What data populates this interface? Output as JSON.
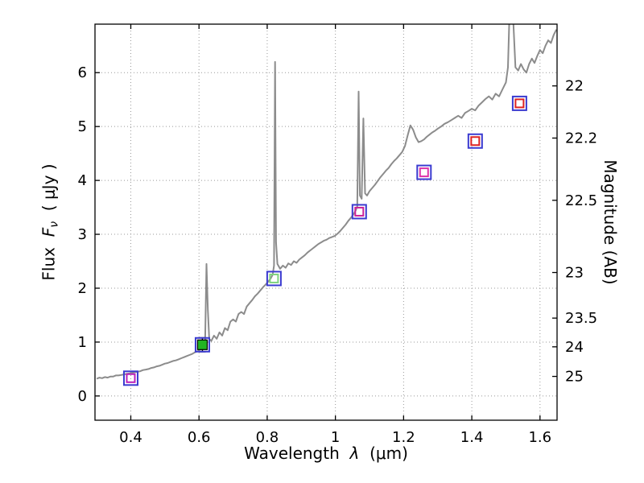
{
  "figure": {
    "background": "#ffffff",
    "frame_color": "#000000",
    "grid_color": "#999999"
  },
  "chart_data": {
    "type": "line+scatter",
    "title": "",
    "xlabel": {
      "prefix": "Wavelength",
      "symbol": "λ",
      "suffix": "(μm)"
    },
    "ylabel_left": {
      "prefix": "Flux",
      "symbol": "F",
      "subscript": "ν",
      "units": "( μJy )"
    },
    "ylabel_right": "Magnitude (AB)",
    "xlim": [
      0.295,
      1.65
    ],
    "ylim": [
      -0.45,
      6.9
    ],
    "grid": true,
    "x_ticks": [
      {
        "value": 0.4,
        "label": "0.4"
      },
      {
        "value": 0.6,
        "label": "0.6"
      },
      {
        "value": 0.8,
        "label": "0.8"
      },
      {
        "value": 1.0,
        "label": "1"
      },
      {
        "value": 1.2,
        "label": "1.2"
      },
      {
        "value": 1.4,
        "label": "1.4"
      },
      {
        "value": 1.6,
        "label": "1.6"
      }
    ],
    "y_ticks_left": [
      {
        "value": 0,
        "label": "0"
      },
      {
        "value": 1,
        "label": "1"
      },
      {
        "value": 2,
        "label": "2"
      },
      {
        "value": 3,
        "label": "3"
      },
      {
        "value": 4,
        "label": "4"
      },
      {
        "value": 5,
        "label": "5"
      },
      {
        "value": 6,
        "label": "6"
      }
    ],
    "y_ticks_right": [
      {
        "flux": 5.754,
        "label": "22"
      },
      {
        "flux": 4.786,
        "label": "22.2"
      },
      {
        "flux": 3.631,
        "label": "22.5"
      },
      {
        "flux": 2.291,
        "label": "23"
      },
      {
        "flux": 1.445,
        "label": "23.5"
      },
      {
        "flux": 0.912,
        "label": "24"
      },
      {
        "flux": 0.363,
        "label": "25"
      }
    ],
    "spectrum": {
      "name": "model-spectrum",
      "color": "#8c8c8c",
      "width": 2,
      "points": [
        [
          0.3,
          0.32
        ],
        [
          0.308,
          0.34
        ],
        [
          0.316,
          0.33
        ],
        [
          0.324,
          0.35
        ],
        [
          0.332,
          0.34
        ],
        [
          0.34,
          0.36
        ],
        [
          0.348,
          0.36
        ],
        [
          0.356,
          0.38
        ],
        [
          0.364,
          0.38
        ],
        [
          0.372,
          0.39
        ],
        [
          0.38,
          0.4
        ],
        [
          0.388,
          0.41
        ],
        [
          0.396,
          0.42
        ],
        [
          0.404,
          0.43
        ],
        [
          0.412,
          0.44
        ],
        [
          0.42,
          0.45
        ],
        [
          0.428,
          0.46
        ],
        [
          0.436,
          0.48
        ],
        [
          0.444,
          0.49
        ],
        [
          0.452,
          0.5
        ],
        [
          0.46,
          0.52
        ],
        [
          0.468,
          0.53
        ],
        [
          0.476,
          0.55
        ],
        [
          0.484,
          0.56
        ],
        [
          0.492,
          0.58
        ],
        [
          0.5,
          0.6
        ],
        [
          0.508,
          0.61
        ],
        [
          0.516,
          0.63
        ],
        [
          0.524,
          0.65
        ],
        [
          0.532,
          0.66
        ],
        [
          0.54,
          0.68
        ],
        [
          0.548,
          0.7
        ],
        [
          0.556,
          0.72
        ],
        [
          0.564,
          0.74
        ],
        [
          0.572,
          0.76
        ],
        [
          0.58,
          0.78
        ],
        [
          0.588,
          0.81
        ],
        [
          0.596,
          0.83
        ],
        [
          0.604,
          0.86
        ],
        [
          0.612,
          0.9
        ],
        [
          0.618,
          1.0
        ],
        [
          0.622,
          2.45
        ],
        [
          0.626,
          1.6
        ],
        [
          0.63,
          1.06
        ],
        [
          0.636,
          1.02
        ],
        [
          0.644,
          1.12
        ],
        [
          0.652,
          1.06
        ],
        [
          0.66,
          1.18
        ],
        [
          0.668,
          1.12
        ],
        [
          0.676,
          1.26
        ],
        [
          0.684,
          1.22
        ],
        [
          0.692,
          1.38
        ],
        [
          0.7,
          1.42
        ],
        [
          0.708,
          1.38
        ],
        [
          0.716,
          1.52
        ],
        [
          0.724,
          1.56
        ],
        [
          0.732,
          1.52
        ],
        [
          0.74,
          1.66
        ],
        [
          0.748,
          1.72
        ],
        [
          0.756,
          1.78
        ],
        [
          0.764,
          1.85
        ],
        [
          0.772,
          1.9
        ],
        [
          0.78,
          1.96
        ],
        [
          0.788,
          2.02
        ],
        [
          0.796,
          2.07
        ],
        [
          0.804,
          2.13
        ],
        [
          0.81,
          2.18
        ],
        [
          0.816,
          2.25
        ],
        [
          0.82,
          2.42
        ],
        [
          0.823,
          6.2
        ],
        [
          0.826,
          2.85
        ],
        [
          0.83,
          2.45
        ],
        [
          0.838,
          2.36
        ],
        [
          0.846,
          2.42
        ],
        [
          0.854,
          2.38
        ],
        [
          0.862,
          2.46
        ],
        [
          0.87,
          2.43
        ],
        [
          0.878,
          2.5
        ],
        [
          0.886,
          2.47
        ],
        [
          0.894,
          2.53
        ],
        [
          0.902,
          2.57
        ],
        [
          0.91,
          2.61
        ],
        [
          0.918,
          2.66
        ],
        [
          0.926,
          2.7
        ],
        [
          0.934,
          2.74
        ],
        [
          0.942,
          2.78
        ],
        [
          0.95,
          2.82
        ],
        [
          0.958,
          2.85
        ],
        [
          0.966,
          2.88
        ],
        [
          0.974,
          2.9
        ],
        [
          0.982,
          2.93
        ],
        [
          0.99,
          2.95
        ],
        [
          0.998,
          2.97
        ],
        [
          1.006,
          3.01
        ],
        [
          1.014,
          3.06
        ],
        [
          1.022,
          3.12
        ],
        [
          1.03,
          3.18
        ],
        [
          1.038,
          3.25
        ],
        [
          1.046,
          3.31
        ],
        [
          1.054,
          3.38
        ],
        [
          1.06,
          3.45
        ],
        [
          1.064,
          3.52
        ],
        [
          1.068,
          5.65
        ],
        [
          1.072,
          3.72
        ],
        [
          1.077,
          3.66
        ],
        [
          1.082,
          5.15
        ],
        [
          1.087,
          3.76
        ],
        [
          1.093,
          3.72
        ],
        [
          1.1,
          3.8
        ],
        [
          1.108,
          3.86
        ],
        [
          1.116,
          3.92
        ],
        [
          1.124,
          3.99
        ],
        [
          1.132,
          4.06
        ],
        [
          1.14,
          4.12
        ],
        [
          1.148,
          4.18
        ],
        [
          1.156,
          4.23
        ],
        [
          1.164,
          4.3
        ],
        [
          1.172,
          4.36
        ],
        [
          1.18,
          4.41
        ],
        [
          1.188,
          4.47
        ],
        [
          1.196,
          4.53
        ],
        [
          1.204,
          4.64
        ],
        [
          1.212,
          4.84
        ],
        [
          1.22,
          5.02
        ],
        [
          1.228,
          4.94
        ],
        [
          1.236,
          4.8
        ],
        [
          1.244,
          4.71
        ],
        [
          1.252,
          4.73
        ],
        [
          1.26,
          4.76
        ],
        [
          1.268,
          4.81
        ],
        [
          1.276,
          4.85
        ],
        [
          1.284,
          4.89
        ],
        [
          1.292,
          4.92
        ],
        [
          1.3,
          4.96
        ],
        [
          1.31,
          5.0
        ],
        [
          1.32,
          5.05
        ],
        [
          1.33,
          5.08
        ],
        [
          1.34,
          5.12
        ],
        [
          1.35,
          5.16
        ],
        [
          1.36,
          5.2
        ],
        [
          1.37,
          5.16
        ],
        [
          1.38,
          5.25
        ],
        [
          1.39,
          5.29
        ],
        [
          1.4,
          5.33
        ],
        [
          1.41,
          5.3
        ],
        [
          1.42,
          5.39
        ],
        [
          1.43,
          5.45
        ],
        [
          1.44,
          5.51
        ],
        [
          1.45,
          5.56
        ],
        [
          1.46,
          5.5
        ],
        [
          1.47,
          5.61
        ],
        [
          1.48,
          5.56
        ],
        [
          1.49,
          5.69
        ],
        [
          1.5,
          5.82
        ],
        [
          1.506,
          6.1
        ],
        [
          1.512,
          7.4
        ],
        [
          1.517,
          7.6
        ],
        [
          1.522,
          6.9
        ],
        [
          1.528,
          6.1
        ],
        [
          1.536,
          6.04
        ],
        [
          1.544,
          6.16
        ],
        [
          1.552,
          6.06
        ],
        [
          1.56,
          6.0
        ],
        [
          1.568,
          6.16
        ],
        [
          1.576,
          6.26
        ],
        [
          1.584,
          6.18
        ],
        [
          1.592,
          6.31
        ],
        [
          1.6,
          6.42
        ],
        [
          1.608,
          6.36
        ],
        [
          1.616,
          6.5
        ],
        [
          1.624,
          6.6
        ],
        [
          1.632,
          6.55
        ],
        [
          1.64,
          6.7
        ],
        [
          1.648,
          6.8
        ]
      ]
    },
    "photometry": [
      {
        "x": 0.4,
        "flux": 0.33,
        "outer": "#3b3bd0",
        "inner": "#bb22bb",
        "style": "open"
      },
      {
        "x": 0.61,
        "flux": 0.95,
        "outer": "#3b3bd0",
        "fill": "#22b422",
        "edge": "#000000",
        "err": 0.13,
        "style": "filled"
      },
      {
        "x": 0.82,
        "flux": 2.18,
        "outer": "#3b3bd0",
        "inner": "#7fd27f",
        "style": "open"
      },
      {
        "x": 1.07,
        "flux": 3.42,
        "outer": "#3b3bd0",
        "inner": "#cc2299",
        "style": "open"
      },
      {
        "x": 1.26,
        "flux": 4.15,
        "outer": "#3b3bd0",
        "inner": "#dd33aa",
        "style": "open"
      },
      {
        "x": 1.41,
        "flux": 4.73,
        "outer": "#3b3bd0",
        "inner": "#dd2222",
        "style": "open"
      },
      {
        "x": 1.54,
        "flux": 5.43,
        "outer": "#3b3bd0",
        "inner": "#dd2222",
        "style": "open"
      }
    ]
  }
}
